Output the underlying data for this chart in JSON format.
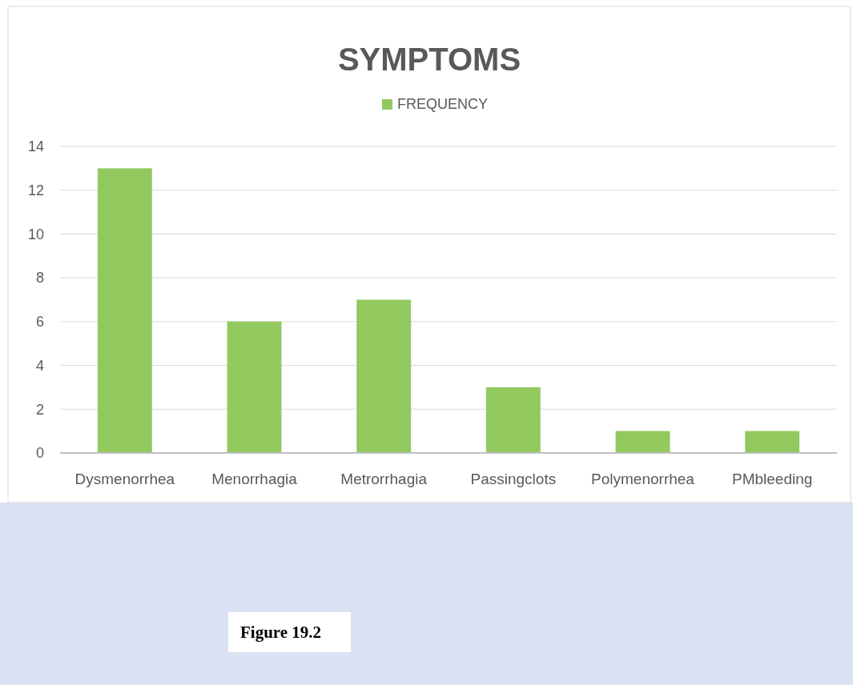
{
  "chart_data": {
    "type": "bar",
    "title": "SYMPTOMS",
    "categories": [
      "Dysmenorrhea",
      "Menorrhagia",
      "Metrorrhagia",
      "Passingclots",
      "Polymenorrhea",
      "PMbleeding"
    ],
    "series": [
      {
        "name": "FREQUENCY",
        "color": "#92c95f",
        "values": [
          13,
          6,
          7,
          3,
          1,
          1
        ]
      }
    ],
    "ylim": [
      0,
      14
    ],
    "yticks": [
      0,
      2,
      4,
      6,
      8,
      10,
      12,
      14
    ],
    "grid": "y",
    "legend": "top",
    "annotations": [
      "Figure 19.2"
    ]
  }
}
